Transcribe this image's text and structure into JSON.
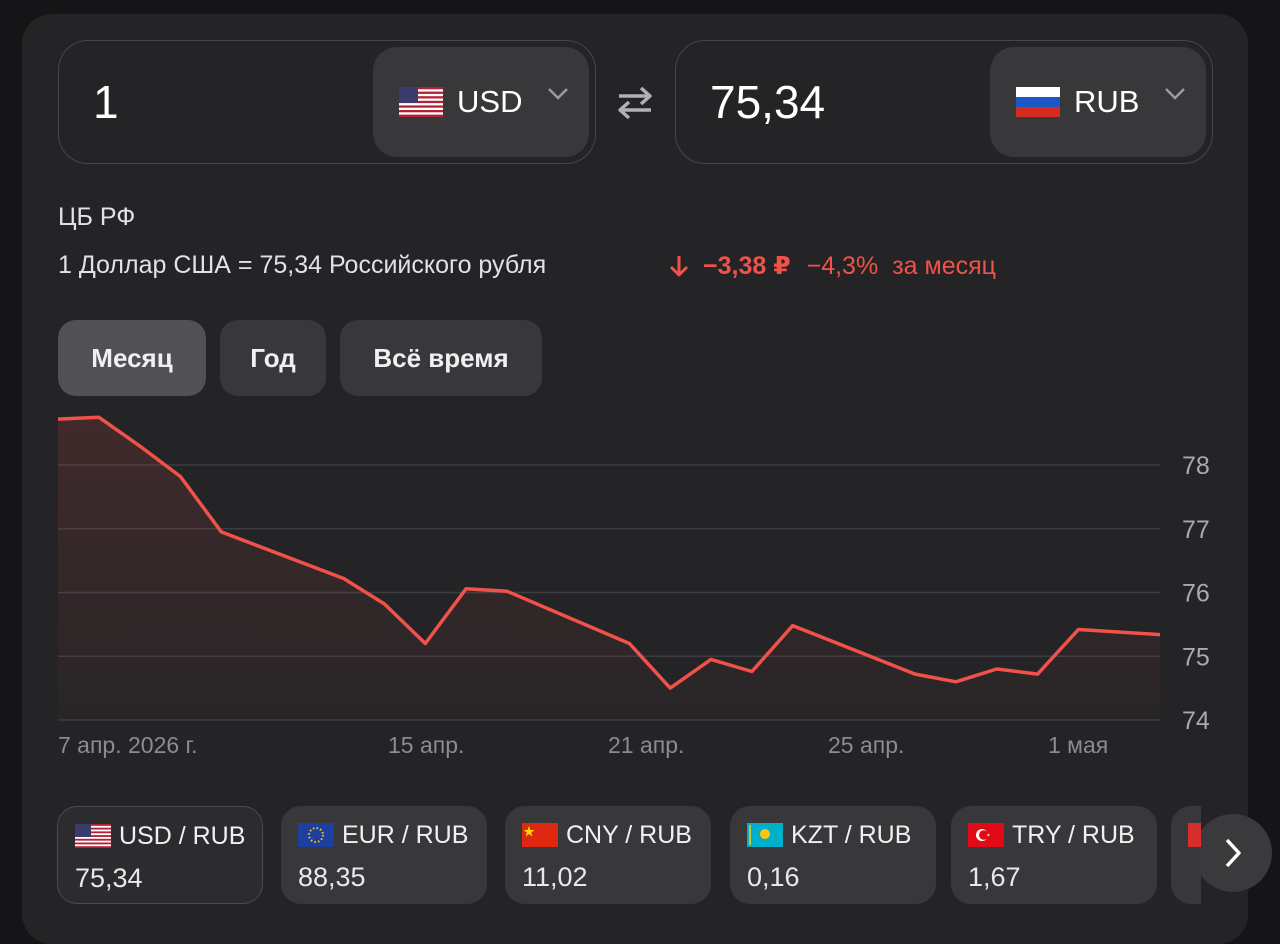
{
  "converter": {
    "from": {
      "amount": "1",
      "currency": "USD",
      "flag_icon": "us-flag-icon"
    },
    "to": {
      "amount": "75,34",
      "currency": "RUB",
      "flag_icon": "ru-flag-icon"
    },
    "swap_icon": "swap-arrows-icon"
  },
  "info": {
    "source": "ЦБ РФ",
    "rate_text": "1 Доллар США = 75,34 Российского рубля",
    "change_abs": "−3,38 ₽",
    "change_pct": "−4,3%",
    "change_period": "за месяц",
    "change_color": "#f0524a"
  },
  "periods": [
    {
      "label": "Месяц",
      "active": true
    },
    {
      "label": "Год",
      "active": false
    },
    {
      "label": "Всё время",
      "active": false
    }
  ],
  "chart_data": {
    "type": "line",
    "x": [
      "2026-04-07",
      "2026-04-08",
      "2026-04-09",
      "2026-04-10",
      "2026-04-11",
      "2026-04-14",
      "2026-04-15",
      "2026-04-16",
      "2026-04-17",
      "2026-04-18",
      "2026-04-21",
      "2026-04-22",
      "2026-04-23",
      "2026-04-24",
      "2026-04-25",
      "2026-04-28",
      "2026-04-29",
      "2026-04-30",
      "2026-05-01",
      "2026-05-02",
      "2026-05-04"
    ],
    "values": [
      78.72,
      78.75,
      78.3,
      77.82,
      76.95,
      76.22,
      75.82,
      75.2,
      76.06,
      76.02,
      75.2,
      74.5,
      74.95,
      74.76,
      75.48,
      74.72,
      74.6,
      74.8,
      74.72,
      75.42,
      75.34
    ],
    "xticks": [
      "7 апр. 2026 г.",
      "15 апр.",
      "21 апр.",
      "25 апр.",
      "1 мая"
    ],
    "yticks": [
      "74",
      "75",
      "76",
      "77",
      "78"
    ],
    "ylim": [
      74,
      78.75
    ],
    "grid": true,
    "line_color": "#f0524a"
  },
  "pairs": [
    {
      "label": "USD / RUB",
      "value": "75,34",
      "flag": "us-flag-icon",
      "active": true
    },
    {
      "label": "EUR / RUB",
      "value": "88,35",
      "flag": "eu-flag-icon",
      "active": false
    },
    {
      "label": "CNY / RUB",
      "value": "11,02",
      "flag": "cn-flag-icon",
      "active": false
    },
    {
      "label": "KZT / RUB",
      "value": "0,16",
      "flag": "kz-flag-icon",
      "active": false
    },
    {
      "label": "TRY / RUB",
      "value": "1,67",
      "flag": "tr-flag-icon",
      "active": false
    }
  ],
  "next_icon": "chevron-right-icon"
}
